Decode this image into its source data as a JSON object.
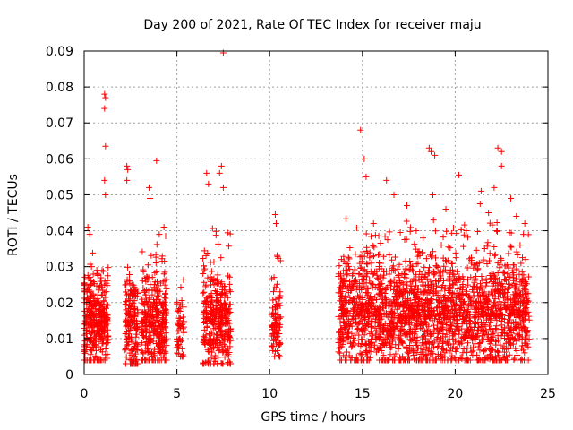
{
  "chart_data": {
    "type": "scatter",
    "title": "Day 200 of 2021, Rate Of TEC Index for receiver maju",
    "xlabel": "GPS time / hours",
    "ylabel": "ROTI / TECUs",
    "xlim": [
      0,
      25
    ],
    "ylim": [
      0,
      0.09
    ],
    "x_ticks": [
      0,
      5,
      10,
      15,
      20,
      25
    ],
    "x_tick_labels": [
      "0",
      "5",
      "10",
      "15",
      "20",
      "25"
    ],
    "y_ticks": [
      0,
      0.01,
      0.02,
      0.03,
      0.04,
      0.05,
      0.06,
      0.07,
      0.08,
      0.09
    ],
    "y_tick_labels": [
      "0",
      "0.01",
      "0.02",
      "0.03",
      "0.04",
      "0.05",
      "0.06",
      "0.07",
      "0.08",
      "0.09"
    ],
    "grid": true,
    "marker": "+",
    "marker_color": "#ff0000",
    "series": [
      {
        "name": "ROTI",
        "clusters": [
          {
            "x_range": [
              0.0,
              1.3
            ],
            "min": 0.004,
            "typ": 0.014,
            "max": 0.036,
            "count": 360
          },
          {
            "x_range": [
              2.2,
              2.9
            ],
            "min": 0.003,
            "typ": 0.013,
            "max": 0.033,
            "count": 160
          },
          {
            "x_range": [
              3.1,
              4.45
            ],
            "min": 0.004,
            "typ": 0.014,
            "max": 0.044,
            "count": 330
          },
          {
            "x_range": [
              5.0,
              5.4
            ],
            "min": 0.005,
            "typ": 0.012,
            "max": 0.031,
            "count": 60
          },
          {
            "x_range": [
              6.4,
              7.9
            ],
            "min": 0.003,
            "typ": 0.014,
            "max": 0.046,
            "count": 340
          },
          {
            "x_range": [
              10.1,
              10.6
            ],
            "min": 0.005,
            "typ": 0.013,
            "max": 0.039,
            "count": 90
          },
          {
            "x_range": [
              13.7,
              24.0
            ],
            "min": 0.004,
            "typ": 0.016,
            "max": 0.048,
            "count": 2200
          }
        ],
        "peaks": [
          [
            0.2,
            0.041
          ],
          [
            0.3,
            0.039
          ],
          [
            1.1,
            0.078
          ],
          [
            1.15,
            0.077
          ],
          [
            1.1,
            0.074
          ],
          [
            1.15,
            0.0635
          ],
          [
            1.1,
            0.054
          ],
          [
            1.15,
            0.05
          ],
          [
            2.3,
            0.058
          ],
          [
            2.35,
            0.057
          ],
          [
            2.3,
            0.054
          ],
          [
            3.5,
            0.052
          ],
          [
            3.55,
            0.049
          ],
          [
            3.9,
            0.0595
          ],
          [
            4.3,
            0.041
          ],
          [
            6.6,
            0.056
          ],
          [
            6.7,
            0.053
          ],
          [
            7.3,
            0.056
          ],
          [
            7.4,
            0.058
          ],
          [
            7.5,
            0.052
          ],
          [
            7.5,
            0.0895
          ],
          [
            10.3,
            0.0445
          ],
          [
            10.35,
            0.042
          ],
          [
            14.9,
            0.068
          ],
          [
            15.1,
            0.06
          ],
          [
            15.2,
            0.055
          ],
          [
            16.3,
            0.054
          ],
          [
            16.7,
            0.05
          ],
          [
            17.4,
            0.047
          ],
          [
            18.6,
            0.063
          ],
          [
            18.7,
            0.062
          ],
          [
            18.9,
            0.061
          ],
          [
            18.8,
            0.05
          ],
          [
            20.2,
            0.0555
          ],
          [
            21.4,
            0.051
          ],
          [
            22.1,
            0.052
          ],
          [
            22.3,
            0.063
          ],
          [
            22.5,
            0.062
          ],
          [
            22.5,
            0.058
          ],
          [
            23.0,
            0.049
          ],
          [
            23.3,
            0.044
          ],
          [
            23.5,
            0.036
          ],
          [
            23.8,
            0.032
          ],
          [
            15.6,
            0.042
          ],
          [
            17.9,
            0.04
          ],
          [
            19.5,
            0.046
          ],
          [
            20.6,
            0.04
          ],
          [
            21.8,
            0.045
          ]
        ]
      }
    ]
  }
}
